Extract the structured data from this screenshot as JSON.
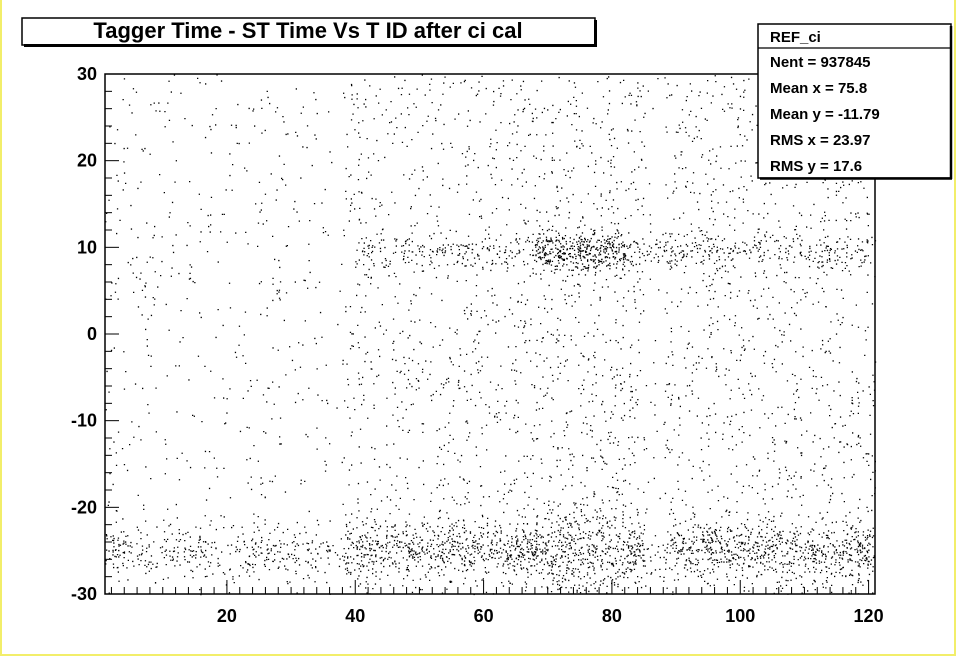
{
  "chart_data": {
    "type": "scatter",
    "title": "Tagger Time - ST Time Vs T ID after ci cal",
    "xlabel": "",
    "ylabel": "",
    "xlim": [
      1,
      121
    ],
    "ylim": [
      -30,
      30
    ],
    "x_ticks": [
      20,
      40,
      60,
      80,
      100,
      120
    ],
    "y_ticks": [
      30,
      20,
      10,
      0,
      -10,
      -20,
      -30
    ],
    "x_tick_labels": [
      "20",
      "40",
      "60",
      "80",
      "100",
      "120"
    ],
    "y_tick_labels": [
      "30",
      "20",
      "10",
      "0",
      "-10",
      "-20",
      "-30"
    ],
    "grid": false,
    "legend_position": "top-right",
    "point_color": "#000000",
    "stats": {
      "name": "REF_ci",
      "lines": [
        {
          "key": "Nent",
          "value": "937845"
        },
        {
          "key": "Mean x",
          "value": "75.8"
        },
        {
          "key": "Mean y",
          "value": "-11.79"
        },
        {
          "key": "RMS x",
          "value": "23.97"
        },
        {
          "key": "RMS y",
          "value": "17.6"
        }
      ]
    },
    "bands": [
      {
        "y_center": -25,
        "y_width": 1.6
      },
      {
        "y_center": 9.5,
        "y_width": 1.2
      }
    ]
  }
}
